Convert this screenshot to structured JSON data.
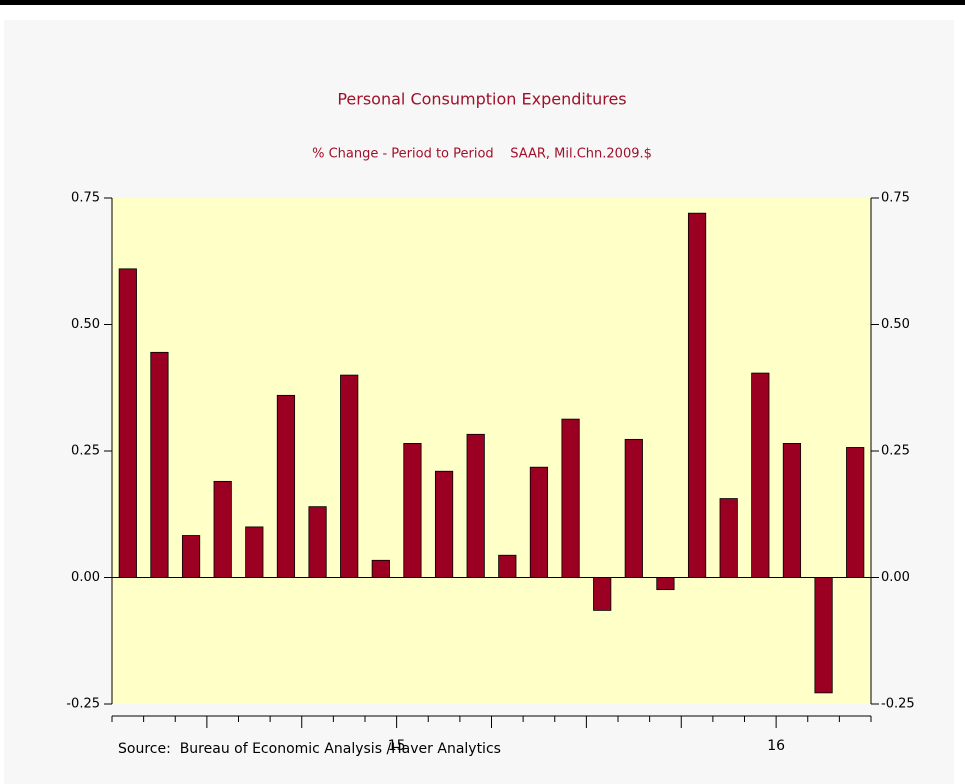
{
  "chart_data": {
    "type": "bar",
    "title": "Personal Consumption Expenditures",
    "subtitle": "% Change - Period to Period    SAAR, Mil.Chn.2009.$",
    "source": "Source:  Bureau of Economic Analysis /Haver Analytics",
    "x": [
      0.5,
      1.5,
      2.5,
      3.5,
      4.5,
      5.5,
      6.5,
      7.5,
      8.5,
      9.5,
      10.5,
      11.5,
      12.5,
      13.5,
      14.5,
      15.5,
      16.5,
      17.5,
      18.5,
      19.5,
      20.5,
      21.5,
      22.5,
      23.5
    ],
    "values": [
      0.61,
      0.445,
      0.083,
      0.19,
      0.1,
      0.36,
      0.14,
      0.4,
      0.034,
      0.265,
      0.21,
      0.283,
      0.044,
      0.218,
      0.313,
      -0.065,
      0.273,
      -0.024,
      0.72,
      0.156,
      0.404,
      0.265,
      -0.228,
      0.257
    ],
    "color": "#9b0022",
    "xlim": [
      0,
      24
    ],
    "xticks": [
      {
        "value": 9,
        "label": "15"
      },
      {
        "value": 21,
        "label": "16"
      }
    ],
    "x_major_ticks": [
      3,
      6,
      9,
      12,
      15,
      18,
      21
    ],
    "x_minor_ticks": [
      0,
      1,
      2,
      4,
      5,
      7,
      8,
      10,
      11,
      13,
      14,
      16,
      17,
      19,
      20,
      22,
      23,
      24
    ],
    "ylim": [
      -0.25,
      0.75
    ],
    "yticks": [
      -0.25,
      {
        "value": 0,
        "label": "0.00"
      },
      0.25,
      {
        "value": 0.5,
        "label": "0.50"
      },
      0.75
    ],
    "y2lim": [
      -0.25,
      0.75
    ],
    "y2ticks": [
      -0.25,
      {
        "value": 0,
        "label": "0.00"
      },
      0.25,
      {
        "value": 0.5,
        "label": "0.50"
      },
      0.75
    ],
    "plot_background": "#ffffc8"
  }
}
